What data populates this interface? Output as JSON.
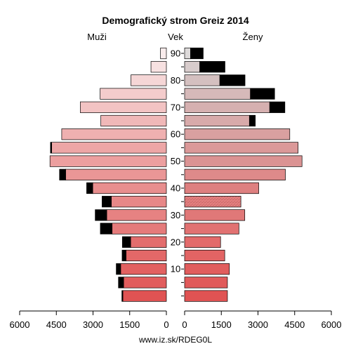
{
  "chart_data": {
    "type": "bar",
    "title": "Demografický strom Greiz 2014",
    "left_label": "Muži",
    "center_label": "Vek",
    "right_label": "Ženy",
    "footer": "www.iz.sk/RDEG0L",
    "x_ticks_left": [
      "6000",
      "4500",
      "3000",
      "1500",
      "0"
    ],
    "x_ticks_right": [
      "0",
      "1500",
      "3000",
      "4500",
      "6000"
    ],
    "age_ticks": [
      "10",
      "20",
      "30",
      "40",
      "50",
      "60",
      "70",
      "80",
      "90"
    ],
    "xlim": [
      0,
      6000
    ],
    "age_groups": [
      "0-4",
      "5-9",
      "10-14",
      "15-19",
      "20-24",
      "25-29",
      "30-34",
      "35-39",
      "40-44",
      "45-49",
      "50-54",
      "55-59",
      "60-64",
      "65-69",
      "70-74",
      "75-79",
      "80-84",
      "85-89",
      "90+"
    ],
    "series": [
      {
        "name": "Muži",
        "values": [
          1780,
          1750,
          1870,
          1650,
          1460,
          2220,
          2440,
          2250,
          3010,
          4120,
          4760,
          4690,
          4280,
          2680,
          3520,
          2710,
          1450,
          630,
          240
        ]
      },
      {
        "name": "Muži prebytok",
        "values": [
          40,
          210,
          180,
          160,
          340,
          480,
          470,
          380,
          250,
          250,
          0,
          50,
          0,
          0,
          0,
          0,
          0,
          0,
          0
        ]
      },
      {
        "name": "Ženy",
        "values": [
          1750,
          1750,
          1830,
          1640,
          1470,
          2220,
          2460,
          2300,
          3030,
          4120,
          4800,
          4640,
          4300,
          2650,
          3480,
          2690,
          1440,
          620,
          240
        ]
      },
      {
        "name": "Ženy prebytok",
        "values": [
          0,
          0,
          0,
          0,
          0,
          0,
          0,
          0,
          0,
          0,
          0,
          0,
          0,
          240,
          620,
          990,
          1030,
          1030,
          520
        ]
      }
    ],
    "colors": {
      "excess": "#000000",
      "edge": "#000000",
      "male": [
        "#e05353",
        "#e15d5d",
        "#e26161",
        "#e36868",
        "#e36d6d",
        "#e57b7b",
        "#e68282",
        "#e78888",
        "#e88e8e",
        "#ea9696",
        "#ec9f9f",
        "#eda6a6",
        "#efb0b0",
        "#f0b8b8",
        "#f2c3c3",
        "#f4cccc",
        "#f5d6d6",
        "#f7e1e1",
        "#f9ecec"
      ],
      "female": [
        "#e05353",
        "#e05a5a",
        "#e15d5d",
        "#e26464",
        "#e36a6a",
        "#e17272",
        "#e07878",
        "#e27e7e",
        "#de8080",
        "#de8a8a",
        "#db9393",
        "#db9999",
        "#d9a0a0",
        "#d8aaaa",
        "#d6b0b0",
        "#d6b9b9",
        "#d4c0c0",
        "#d8cccc",
        "#dddada"
      ],
      "female_texture_index": 7
    }
  }
}
